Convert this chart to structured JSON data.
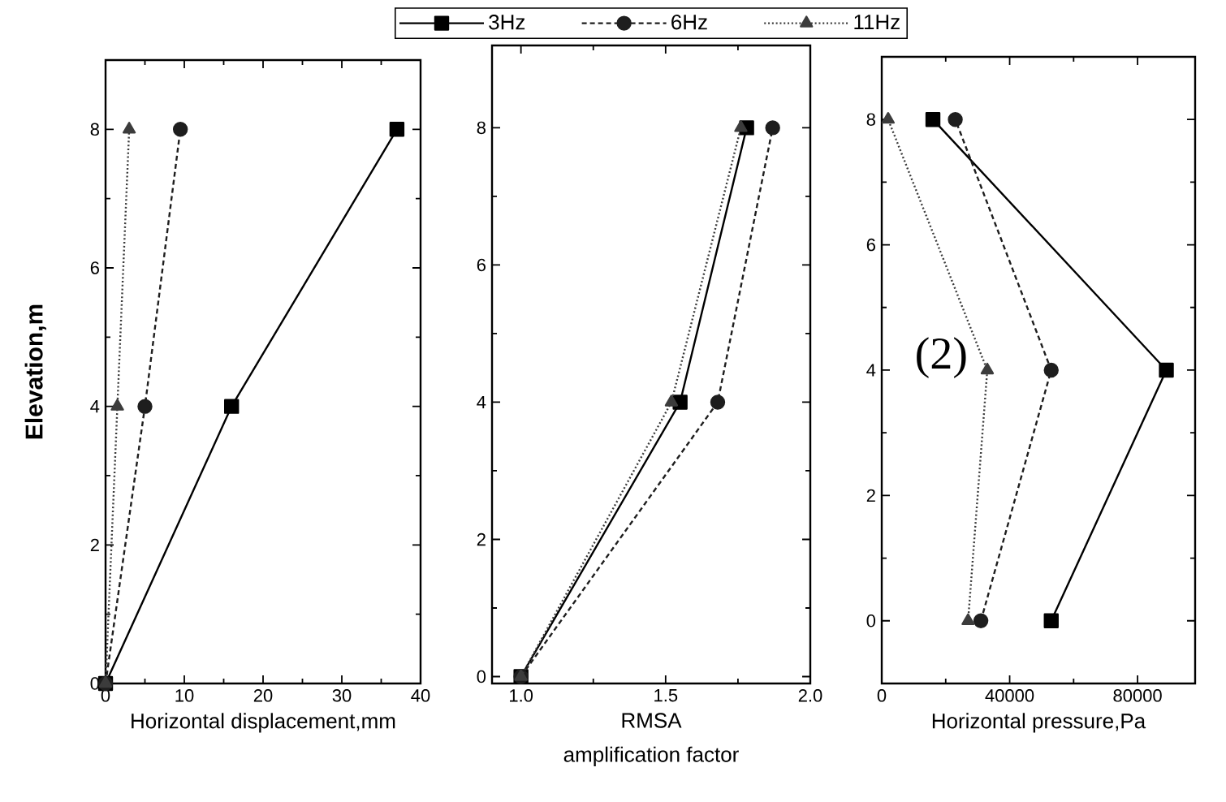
{
  "chart_data": [
    {
      "type": "line",
      "xlabel": "Horizontal displacement,mm",
      "ylabel": "Elevation,m",
      "xlim": [
        0,
        40
      ],
      "ylim": [
        0,
        9
      ],
      "xticks": [
        0,
        {
          "value": 5,
          "label": null
        },
        10,
        {
          "value": 15,
          "label": null
        },
        20,
        {
          "value": 25,
          "label": null
        },
        30,
        {
          "value": 35,
          "label": null
        },
        40
      ],
      "yticks": [
        0,
        {
          "value": 1,
          "label": null
        },
        2,
        {
          "value": 3,
          "label": null
        },
        4,
        {
          "value": 5,
          "label": null
        },
        6,
        {
          "value": 7,
          "label": null
        },
        8
      ],
      "series": [
        {
          "color": "#000000",
          "marker": "square",
          "line_style": "solid",
          "x": [
            0,
            16,
            37
          ],
          "values": [
            0,
            4,
            8
          ]
        },
        {
          "color": "#1e1e1e",
          "marker": "circle",
          "line_style": "dashed",
          "x": [
            0,
            5,
            9.5
          ],
          "values": [
            0,
            4,
            8
          ]
        },
        {
          "color": "#3c3c3c",
          "marker": "triangle",
          "line_style": "dotted",
          "x": [
            0,
            1.5,
            3
          ],
          "values": [
            0,
            4,
            8
          ]
        }
      ]
    },
    {
      "type": "line",
      "xlabel": "RMSA amplification factor",
      "xlim": [
        0.9,
        2.0
      ],
      "ylim": [
        -0.1,
        9.2
      ],
      "xticks": [
        {
          "value": 1,
          "label": "1.0"
        },
        {
          "value": 1.25,
          "label": null
        },
        {
          "value": 1.5,
          "label": "1.5"
        },
        {
          "value": 1.75,
          "label": null
        },
        {
          "value": 2,
          "label": "2.0"
        }
      ],
      "yticks": [
        0,
        {
          "value": 1,
          "label": null
        },
        2,
        {
          "value": 3,
          "label": null
        },
        4,
        {
          "value": 5,
          "label": null
        },
        6,
        {
          "value": 7,
          "label": null
        },
        8
      ],
      "legend": "top",
      "series": [
        {
          "name": "3Hz",
          "color": "#000000",
          "marker": "square",
          "line_style": "solid",
          "x": [
            1.0,
            1.55,
            1.78
          ],
          "values": [
            0,
            4,
            8
          ]
        },
        {
          "name": "6Hz",
          "color": "#1e1e1e",
          "marker": "circle",
          "line_style": "dashed",
          "x": [
            1.0,
            1.68,
            1.87
          ],
          "values": [
            0,
            4,
            8
          ]
        },
        {
          "name": "11Hz",
          "color": "#3c3c3c",
          "marker": "triangle",
          "line_style": "dotted",
          "x": [
            1.0,
            1.52,
            1.76
          ],
          "values": [
            0,
            4,
            8
          ]
        }
      ]
    },
    {
      "type": "line",
      "xlabel": "Horizontal pressure,Pa",
      "xlim": [
        0,
        98000
      ],
      "ylim": [
        -1,
        9
      ],
      "xticks": [
        0,
        {
          "value": 20000,
          "label": null
        },
        40000,
        {
          "value": 60000,
          "label": null
        },
        80000
      ],
      "yticks": [
        0,
        {
          "value": 1,
          "label": null
        },
        2,
        {
          "value": 3,
          "label": null
        },
        4,
        {
          "value": 5,
          "label": null
        },
        6,
        {
          "value": 7,
          "label": null
        },
        8
      ],
      "annotations": [
        "(2)"
      ],
      "series": [
        {
          "color": "#000000",
          "marker": "square",
          "line_style": "solid",
          "x": [
            53000,
            89000,
            16000
          ],
          "values": [
            0,
            4,
            8
          ]
        },
        {
          "color": "#1e1e1e",
          "marker": "circle",
          "line_style": "dashed",
          "x": [
            31000,
            53000,
            23000
          ],
          "values": [
            0,
            4,
            8
          ]
        },
        {
          "color": "#3c3c3c",
          "marker": "triangle",
          "line_style": "dotted",
          "x": [
            27000,
            33000,
            2000
          ],
          "values": [
            0,
            4,
            8
          ]
        }
      ]
    }
  ]
}
